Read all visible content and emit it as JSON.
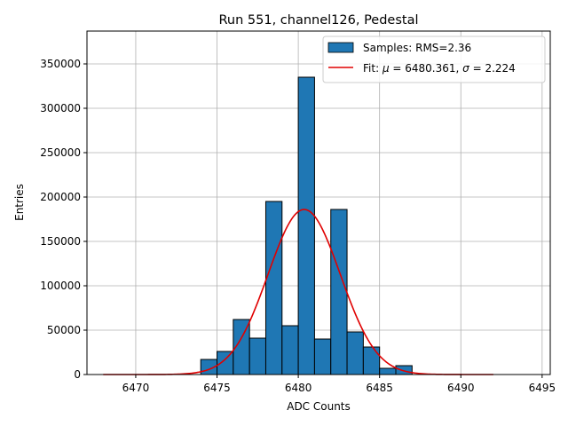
{
  "chart_data": {
    "type": "bar",
    "title": "Run 551, channel126, Pedestal",
    "xlabel": "ADC Counts",
    "ylabel": "Entries",
    "xlim": [
      6467,
      6495.5
    ],
    "ylim": [
      0,
      387000
    ],
    "xticks": [
      6470,
      6475,
      6480,
      6485,
      6490,
      6495
    ],
    "yticks": [
      0,
      50000,
      100000,
      150000,
      200000,
      250000,
      300000,
      350000
    ],
    "grid": true,
    "legend_position": "top-right",
    "histogram": {
      "name": "Samples: RMS=2.36",
      "color": "#1f77b4",
      "bin_edges": [
        6474,
        6475,
        6476,
        6477,
        6478,
        6479,
        6480,
        6481,
        6482,
        6483,
        6484,
        6485,
        6486,
        6487
      ],
      "counts": [
        17000,
        26000,
        62000,
        41000,
        195000,
        55000,
        335000,
        40000,
        186000,
        48000,
        31000,
        7000,
        10000
      ]
    },
    "fit": {
      "name": "Fit: μ = 6480.361, σ = 2.224",
      "legend_parts": [
        "Fit: ",
        "μ",
        " = 6480.361, ",
        "σ",
        " = 2.224"
      ],
      "color": "#e00000",
      "mu": 6480.361,
      "sigma": 2.224,
      "amplitude": 186000,
      "x_range": [
        6468,
        6492
      ]
    }
  }
}
